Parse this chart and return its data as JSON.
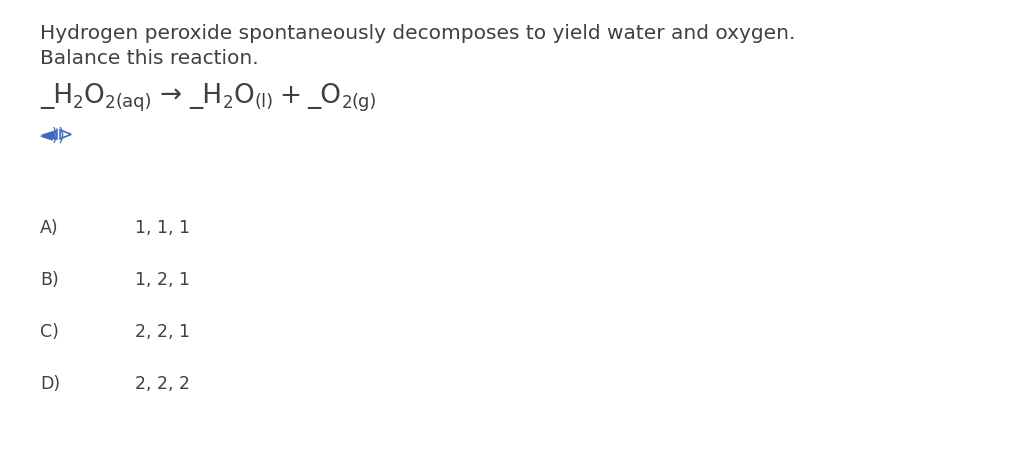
{
  "background_color": "#ffffff",
  "text_color": "#404040",
  "blue_color": "#3a6bbf",
  "description_line1": "Hydrogen peroxide spontaneously decomposes to yield water and oxygen.",
  "description_line2": "Balance this reaction.",
  "choices": [
    {
      "label": "A)",
      "text": "1, 1, 1"
    },
    {
      "label": "B)",
      "text": "1, 2, 1"
    },
    {
      "label": "C)",
      "text": "2, 2, 1"
    },
    {
      "label": "D)",
      "text": "2, 2, 2"
    }
  ],
  "font_size_description": 14.5,
  "font_size_equation": 19,
  "font_size_choices": 12.5,
  "font_size_state": 13,
  "font_size_sub": 12,
  "font_size_speaker": 14
}
